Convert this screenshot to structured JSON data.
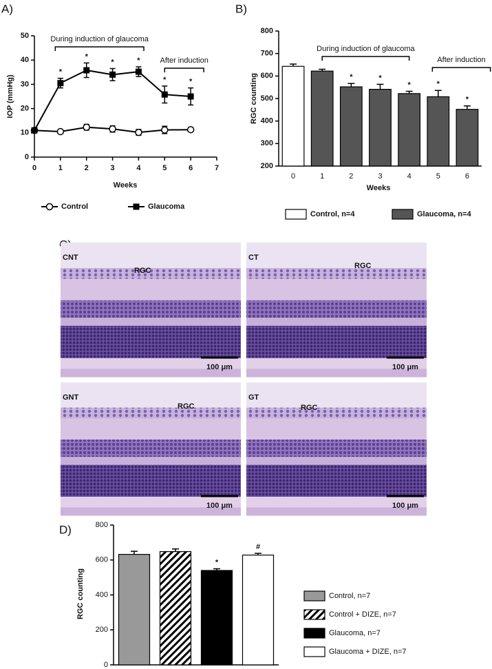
{
  "chart_data": [
    {
      "type": "line",
      "label": "A)",
      "xlabel": "Weeks",
      "ylabel": "IOP (mmHg)",
      "x": [
        0,
        1,
        2,
        3,
        4,
        5,
        6
      ],
      "xlim": [
        0,
        7
      ],
      "xticks": [
        0,
        1,
        2,
        3,
        4,
        5,
        6,
        7
      ],
      "ylim": [
        0,
        50
      ],
      "yticks": [
        0,
        10,
        20,
        30,
        40,
        50
      ],
      "legend": "below",
      "brackets": [
        {
          "text": "During induction of glaucoma",
          "from": 0.8,
          "to": 4.2
        },
        {
          "text": "After induction",
          "from": 5,
          "to": 6.5
        }
      ],
      "series": [
        {
          "name": "Control",
          "color": "#000000",
          "marker": "circle",
          "values": [
            11,
            10.5,
            12.3,
            11.6,
            10.2,
            11.2,
            11.3
          ],
          "errors": [
            0.5,
            0.5,
            1.2,
            1.3,
            1.2,
            1.5,
            0.5
          ],
          "significance": [
            null,
            null,
            null,
            null,
            null,
            null,
            null
          ]
        },
        {
          "name": "Glaucoma",
          "color": "#000000",
          "marker": "square",
          "values": [
            11,
            30.5,
            35.8,
            34,
            35.2,
            25.8,
            25
          ],
          "errors": [
            0.5,
            2,
            3,
            2.5,
            2,
            3.5,
            3.5
          ],
          "significance": [
            null,
            "*",
            "*",
            "*",
            "*",
            "*",
            "*"
          ]
        }
      ]
    },
    {
      "type": "bar",
      "label": "B)",
      "xlabel": "Weeks",
      "ylabel": "RGC counting",
      "categories": [
        "0",
        "1",
        "2",
        "3",
        "4",
        "5",
        "6"
      ],
      "ylim": [
        200,
        800
      ],
      "yticks": [
        200,
        300,
        400,
        500,
        600,
        700,
        800
      ],
      "legend": "below",
      "brackets": [
        {
          "text": "During induction of glaucoma",
          "from": 1,
          "to": 4
        },
        {
          "text": "After induction",
          "from": 4.8,
          "to": 6.8
        }
      ],
      "series": [
        {
          "name": "Control, n=4",
          "color": "#ffffff",
          "values": [
            643,
            null,
            null,
            null,
            null,
            null,
            null
          ],
          "errors": [
            10,
            null,
            null,
            null,
            null,
            null,
            null
          ],
          "significance": [
            null,
            null,
            null,
            null,
            null,
            null,
            null
          ]
        },
        {
          "name": "Glaucoma, n=4",
          "color": "#555555",
          "values": [
            null,
            622,
            552,
            541,
            522,
            508,
            452
          ],
          "errors": [
            null,
            8,
            15,
            22,
            10,
            28,
            15
          ],
          "significance": [
            null,
            null,
            "*",
            "*",
            "*",
            "*",
            "*"
          ]
        }
      ]
    },
    {
      "type": "bar",
      "label": "D)",
      "ylabel": "RGC counting",
      "categories": [
        null,
        null,
        null,
        null
      ],
      "ylim": [
        0,
        800
      ],
      "yticks": [
        0,
        200,
        400,
        600,
        800
      ],
      "legend": "right",
      "series": [
        {
          "name": "Control, n=7",
          "color": "#999999",
          "values": [
            632,
            null,
            null,
            null
          ],
          "errors": [
            18,
            null,
            null,
            null
          ],
          "significance": [
            null,
            null,
            null,
            null
          ]
        },
        {
          "name": "Control + DIZE, n=7",
          "color": "#ffffff",
          "hatch": true,
          "values": [
            null,
            648,
            null,
            null
          ],
          "errors": [
            null,
            15,
            null,
            null
          ],
          "significance": [
            null,
            null,
            null,
            null
          ]
        },
        {
          "name": "Glaucoma, n=7",
          "color": "#000000",
          "values": [
            null,
            null,
            540,
            null
          ],
          "errors": [
            null,
            null,
            10,
            null
          ],
          "significance": [
            null,
            null,
            "*",
            null
          ]
        },
        {
          "name": "Glaucoma + DIZE, n=7",
          "color": "#ffffff",
          "values": [
            null,
            null,
            null,
            628
          ],
          "errors": [
            null,
            null,
            null,
            10
          ],
          "significance": [
            null,
            null,
            null,
            "#"
          ]
        }
      ]
    }
  ],
  "micrographs": {
    "label": "C)",
    "images": [
      {
        "name": "CNT",
        "annotation": "RGC",
        "scale_bar": "100 μm"
      },
      {
        "name": "CT",
        "annotation": "RGC",
        "scale_bar": "100 μm"
      },
      {
        "name": "GNT",
        "annotation": "RGC",
        "scale_bar": "100 μm"
      },
      {
        "name": "GT",
        "annotation": "RGC",
        "scale_bar": "100 μm"
      }
    ]
  }
}
